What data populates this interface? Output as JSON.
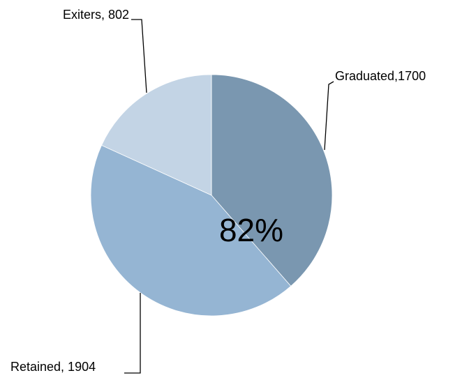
{
  "chart_data": {
    "type": "pie",
    "values": [
      1700,
      1904,
      802
    ],
    "value_labels": [
      "Graduated,1700",
      "Retained, 1904",
      "Exiters, 802"
    ],
    "colors": [
      "#7a97b0",
      "#95b5d3",
      "#c3d4e5"
    ],
    "annotation": "82%"
  }
}
